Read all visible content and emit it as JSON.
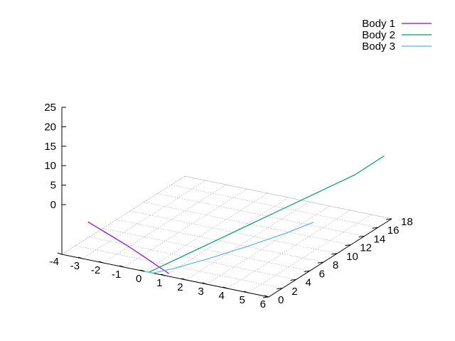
{
  "chart_data": {
    "type": "line",
    "projection": "3d",
    "title": "",
    "xlabel": "",
    "ylabel": "",
    "zlabel": "",
    "grid": true,
    "legend_position": "top-right",
    "x_ticks": [
      "-4",
      "-3",
      "-2",
      "-1",
      "0",
      "1",
      "2",
      "3",
      "4",
      "5",
      "6"
    ],
    "y_ticks": [
      "0",
      "2",
      "4",
      "6",
      "8",
      "10",
      "12",
      "14",
      "16",
      "18"
    ],
    "z_ticks": [
      "0",
      "5",
      "10",
      "15",
      "20",
      "25"
    ],
    "xlim": [
      -4,
      6
    ],
    "ylim": [
      0,
      18
    ],
    "zlim": [
      0,
      25
    ],
    "series": [
      {
        "name": "Body 1",
        "color": "#9400d3",
        "points": [
          {
            "x": 1.0,
            "y": 0.5,
            "z": 0.0
          },
          {
            "x": 0.3,
            "y": 0.9,
            "z": 1.5
          },
          {
            "x": -0.5,
            "y": 1.3,
            "z": 3.5
          },
          {
            "x": -1.4,
            "y": 1.7,
            "z": 5.8
          },
          {
            "x": -2.4,
            "y": 2.0,
            "z": 8.5
          },
          {
            "x": -3.5,
            "y": 2.3,
            "z": 11.5
          }
        ]
      },
      {
        "name": "Body 2",
        "color": "#009e73",
        "points": [
          {
            "x": 0.2,
            "y": 0.0,
            "z": 0.0
          },
          {
            "x": 1.2,
            "y": 3.0,
            "z": 5.0
          },
          {
            "x": 2.2,
            "y": 6.0,
            "z": 10.0
          },
          {
            "x": 3.2,
            "y": 9.0,
            "z": 15.0
          },
          {
            "x": 4.2,
            "y": 12.0,
            "z": 20.0
          },
          {
            "x": 5.2,
            "y": 15.0,
            "z": 25.0
          },
          {
            "x": 5.8,
            "y": 17.5,
            "z": 30.0
          }
        ]
      },
      {
        "name": "Body 3",
        "color": "#56b4e9",
        "points": [
          {
            "x": 0.0,
            "y": 0.0,
            "z": 0.0
          },
          {
            "x": 0.4,
            "y": 0.0,
            "z": 0.0
          },
          {
            "x": 1.0,
            "y": 1.5,
            "z": 0.5
          },
          {
            "x": 1.8,
            "y": 4.0,
            "z": 1.5
          },
          {
            "x": 2.7,
            "y": 7.0,
            "z": 3.0
          },
          {
            "x": 3.6,
            "y": 10.0,
            "z": 5.0
          },
          {
            "x": 4.2,
            "y": 12.0,
            "z": 7.0
          }
        ]
      }
    ]
  }
}
